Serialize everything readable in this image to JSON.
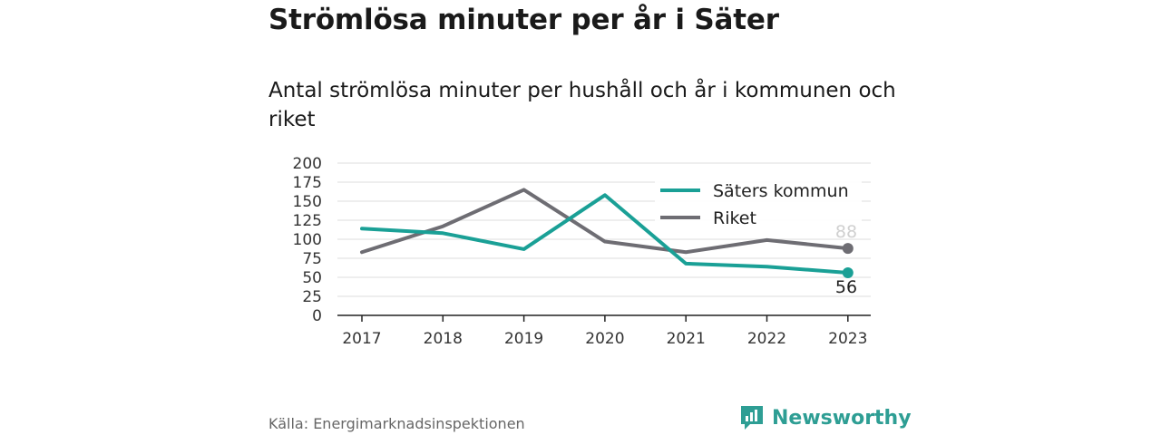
{
  "header": {
    "title": "Strömlösa minuter per år i Säter",
    "subtitle": "Antal strömlösa minuter per hushåll och år i kommunen och riket"
  },
  "footer": {
    "source": "Källa: Energimarknadsinspektionen",
    "brand": "Newsworthy"
  },
  "colors": {
    "kommun": "#1aa096",
    "riket": "#6e6d73",
    "grid": "#dddddd",
    "brand": "#2e9e94"
  },
  "chart_data": {
    "type": "line",
    "categories": [
      "2017",
      "2018",
      "2019",
      "2020",
      "2021",
      "2022",
      "2023"
    ],
    "series": [
      {
        "name": "Säters kommun",
        "values": [
          114,
          108,
          87,
          158,
          68,
          64,
          56
        ]
      },
      {
        "name": "Riket",
        "values": [
          83,
          117,
          165,
          97,
          83,
          99,
          88
        ]
      }
    ],
    "end_labels": [
      "56",
      "88"
    ],
    "yticks": [
      "0",
      "25",
      "50",
      "75",
      "100",
      "125",
      "150",
      "175",
      "200"
    ],
    "ylim": [
      0,
      200
    ],
    "grid": true,
    "legend": "top-right"
  }
}
